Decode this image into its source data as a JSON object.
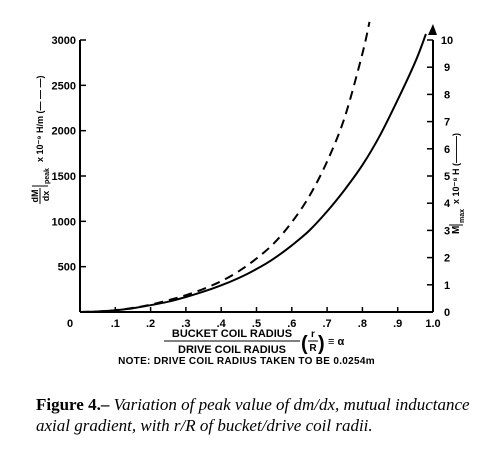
{
  "chart_data": {
    "type": "line",
    "x": [
      0.05,
      0.1,
      0.15,
      0.2,
      0.25,
      0.3,
      0.35,
      0.4,
      0.45,
      0.5,
      0.55,
      0.6,
      0.65,
      0.7,
      0.75,
      0.8,
      0.82
    ],
    "series": [
      {
        "name": "dM/dx|peak (— — —)",
        "axis": "left",
        "style": "dashed",
        "values": [
          5,
          20,
          45,
          80,
          130,
          185,
          255,
          340,
          450,
          590,
          760,
          990,
          1280,
          1660,
          2150,
          2850,
          3200
        ]
      },
      {
        "name": "M|max (———)",
        "axis": "right",
        "style": "solid",
        "x": [
          0.05,
          0.1,
          0.15,
          0.2,
          0.25,
          0.3,
          0.35,
          0.4,
          0.45,
          0.5,
          0.55,
          0.6,
          0.65,
          0.7,
          0.75,
          0.8,
          0.85,
          0.9,
          0.95,
          0.98
        ],
        "values": [
          0.02,
          0.06,
          0.14,
          0.25,
          0.38,
          0.55,
          0.75,
          0.98,
          1.25,
          1.58,
          1.97,
          2.45,
          3.0,
          3.7,
          4.5,
          5.4,
          6.5,
          7.8,
          9.2,
          10.3
        ]
      }
    ],
    "xticks": [
      "0",
      ".1",
      ".2",
      ".3",
      ".4",
      ".5",
      ".6",
      ".7",
      ".8",
      ".9",
      "1.0"
    ],
    "xlim": [
      0,
      1.0
    ],
    "yticks_left": [
      "3000",
      "2500",
      "2000",
      "1500",
      "1000",
      "500"
    ],
    "ylim_left": [
      0,
      3000
    ],
    "yticks_right": [
      "10",
      "9",
      "8",
      "7",
      "6",
      "5",
      "4",
      "3",
      "2",
      "1",
      "0"
    ],
    "ylim_right": [
      0,
      10
    ],
    "xlabel_numerator": "BUCKET COIL RADIUS",
    "xlabel_denominator": "DRIVE COIL RADIUS",
    "xlabel_frac_num": "r",
    "xlabel_frac_den": "R",
    "xlabel_suffix": "≡ α",
    "ylabel_left_num": "dM",
    "ylabel_left_den": "dx",
    "ylabel_left_sub": "peak",
    "ylabel_left_rest": "x 10⁻⁹ H/m (— — —)",
    "ylabel_right_main": "M",
    "ylabel_right_sub": "max",
    "ylabel_right_rest": "x 10⁻⁸ H (———)",
    "grid": false
  },
  "note": "NOTE:  DRIVE COIL RADIUS TAKEN TO BE 0.0254m",
  "caption": {
    "label": "Figure 4.–",
    "text": "Variation of peak value of dm/dx, mutual inductance axial gradient, with r/R of bucket/drive coil radii."
  }
}
